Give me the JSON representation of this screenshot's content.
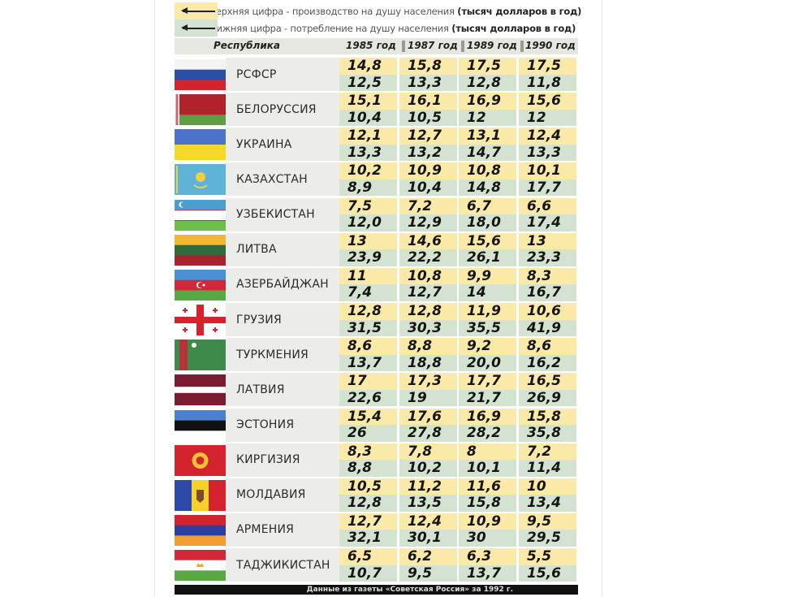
{
  "legend": {
    "top": {
      "text": "Верхняя цифра - производство на душу населения",
      "unit": "(тысяч долларов в год)",
      "color": "#fbe9a7"
    },
    "bottom": {
      "text": "Нижняя цифра - потребление на душу населения",
      "unit": "(тысяч долларов в год)",
      "color": "#d4e3d1"
    }
  },
  "header": {
    "republic": "Республика",
    "years": [
      "1985 год",
      "1987 год",
      "1989 год",
      "1990 год"
    ]
  },
  "footer": "Данные из газеты «Советская Россия» за 1992 г.",
  "chart_data": {
    "type": "table",
    "title": "",
    "columns": [
      "1985 год",
      "1987 год",
      "1989 год",
      "1990 год"
    ],
    "series_meaning": {
      "production": "Верхняя цифра - производство на душу населения (тысяч долларов в год)",
      "consumption": "Нижняя цифра - потребление на душу населения (тысяч долларов в год)"
    },
    "rows": [
      {
        "name": "РСФСР",
        "production": [
          "14,8",
          "15,8",
          "17,5",
          "17,5"
        ],
        "consumption": [
          "12,5",
          "13,3",
          "12,8",
          "11,8"
        ],
        "flag": {
          "dir": "h",
          "stripes": [
            "#f4f4f4",
            "#2a4fa5",
            "#d3232d"
          ]
        }
      },
      {
        "name": "БЕЛОРУССИЯ",
        "production": [
          "15,1",
          "16,1",
          "16,9",
          "15,6"
        ],
        "consumption": [
          "10,4",
          "10,5",
          "12",
          "12"
        ],
        "flag": {
          "dir": "h",
          "stripes": [
            "#b0232b",
            "#b0232b",
            "#5f9e45"
          ],
          "emblem": "ornament"
        }
      },
      {
        "name": "УКРАИНА",
        "production": [
          "12,1",
          "12,7",
          "13,1",
          "12,4"
        ],
        "consumption": [
          "13,3",
          "13,2",
          "14,7",
          "13,3"
        ],
        "flag": {
          "dir": "h",
          "stripes": [
            "#4a73c9",
            "#f5d92a"
          ]
        }
      },
      {
        "name": "КАЗАХСТАН",
        "production": [
          "10,2",
          "10,9",
          "10,8",
          "10,1"
        ],
        "consumption": [
          "8,9",
          "10,4",
          "14,8",
          "17,7"
        ],
        "flag": {
          "dir": "h",
          "stripes": [
            "#5fb3d9"
          ],
          "emblem": "sun"
        }
      },
      {
        "name": "УЗБЕКИСТАН",
        "production": [
          "7,5",
          "7,2",
          "6,7",
          "6,6"
        ],
        "consumption": [
          "12,0",
          "12,9",
          "18,0",
          "17,4"
        ],
        "flag": {
          "dir": "h",
          "stripes": [
            "#4a9fd0",
            "#ffffff",
            "#6cbf4a"
          ],
          "emblem": "crescent"
        }
      },
      {
        "name": "ЛИТВА",
        "production": [
          "13",
          "14,6",
          "15,6",
          "13"
        ],
        "consumption": [
          "23,9",
          "22,2",
          "26,1",
          "23,3"
        ],
        "flag": {
          "dir": "h",
          "stripes": [
            "#f1b730",
            "#2f6b3c",
            "#a8232f"
          ]
        }
      },
      {
        "name": "АЗЕРБАЙДЖАН",
        "production": [
          "11",
          "10,8",
          "9,9",
          "8,3"
        ],
        "consumption": [
          "7,4",
          "12,7",
          "14",
          "16,7"
        ],
        "flag": {
          "dir": "h",
          "stripes": [
            "#4b8fd4",
            "#d3283a",
            "#5aa845"
          ],
          "emblem": "crescent-center"
        }
      },
      {
        "name": "ГРУЗИЯ",
        "production": [
          "12,8",
          "12,8",
          "11,9",
          "10,6"
        ],
        "consumption": [
          "31,5",
          "30,3",
          "35,5",
          "41,9"
        ],
        "flag": {
          "dir": "h",
          "stripes": [
            "#ffffff"
          ],
          "emblem": "cross"
        }
      },
      {
        "name": "ТУРКМЕНИЯ",
        "production": [
          "8,6",
          "8,8",
          "9,2",
          "8,6"
        ],
        "consumption": [
          "13,7",
          "18,8",
          "20,0",
          "16,2"
        ],
        "flag": {
          "dir": "h",
          "stripes": [
            "#3e8a4a"
          ],
          "emblem": "band"
        }
      },
      {
        "name": "ЛАТВИЯ",
        "production": [
          "17",
          "17,3",
          "17,7",
          "16,5"
        ],
        "consumption": [
          "22,6",
          "19",
          "21,7",
          "26,9"
        ],
        "flag": {
          "dir": "h",
          "stripes": [
            "#7a1c32",
            "#7a1c32",
            "#ffffff",
            "#7a1c32",
            "#7a1c32"
          ]
        }
      },
      {
        "name": "ЭСТОНИЯ",
        "production": [
          "15,4",
          "17,6",
          "16,9",
          "15,8"
        ],
        "consumption": [
          "26",
          "27,8",
          "28,2",
          "35,8"
        ],
        "flag": {
          "dir": "h",
          "stripes": [
            "#4b7fcf",
            "#111111",
            "#ffffff"
          ]
        }
      },
      {
        "name": "КИРГИЗИЯ",
        "production": [
          "8,3",
          "7,8",
          "8",
          "7,2"
        ],
        "consumption": [
          "8,8",
          "10,2",
          "10,1",
          "11,4"
        ],
        "flag": {
          "dir": "h",
          "stripes": [
            "#d3232d"
          ],
          "emblem": "kg-sun"
        }
      },
      {
        "name": "МОЛДАВИЯ",
        "production": [
          "10,5",
          "11,2",
          "11,6",
          "10"
        ],
        "consumption": [
          "12,8",
          "13,5",
          "15,8",
          "13,4"
        ],
        "flag": {
          "dir": "v",
          "stripes": [
            "#2c48a8",
            "#f5d12a",
            "#d3232d"
          ],
          "emblem": "coat"
        }
      },
      {
        "name": "АРМЕНИЯ",
        "production": [
          "12,7",
          "12,4",
          "10,9",
          "9,5"
        ],
        "consumption": [
          "32,1",
          "30,1",
          "30",
          "29,5"
        ],
        "flag": {
          "dir": "h",
          "stripes": [
            "#d3232d",
            "#2c3fa0",
            "#f0a030"
          ]
        }
      },
      {
        "name": "ТАДЖИКИСТАН",
        "production": [
          "6,5",
          "6,2",
          "6,3",
          "5,5"
        ],
        "consumption": [
          "10,7",
          "9,5",
          "13,7",
          "15,6"
        ],
        "flag": {
          "dir": "h",
          "stripes": [
            "#d3283a",
            "#ffffff",
            "#5aa845"
          ],
          "emblem": "crown"
        }
      }
    ]
  }
}
